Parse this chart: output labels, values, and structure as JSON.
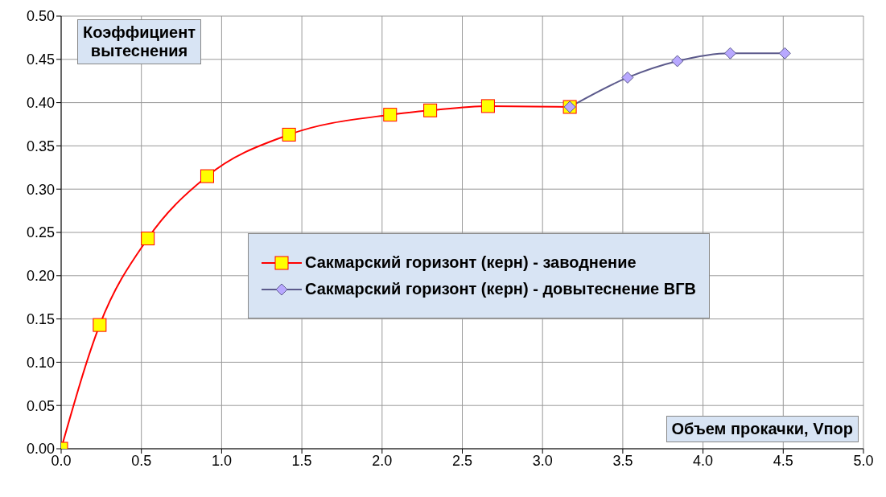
{
  "chart_data": {
    "type": "line",
    "xlabel": "Объем прокачки, Vпор",
    "ylabel": "Коэффициент вытеснения",
    "xlim": [
      0,
      5
    ],
    "ylim": [
      0,
      0.5
    ],
    "xticks": [
      {
        "value": 0,
        "label": "0.0"
      },
      {
        "value": 0.5,
        "label": "0.5"
      },
      {
        "value": 1,
        "label": "1.0"
      },
      {
        "value": 1.5,
        "label": "1.5"
      },
      {
        "value": 2,
        "label": "2.0"
      },
      {
        "value": 2.5,
        "label": "2.5"
      },
      {
        "value": 3,
        "label": "3.0"
      },
      {
        "value": 3.5,
        "label": "3.5"
      },
      {
        "value": 4,
        "label": "4.0"
      },
      {
        "value": 4.5,
        "label": "4.5"
      },
      {
        "value": 5,
        "label": "5.0"
      }
    ],
    "yticks": [
      {
        "value": 0,
        "label": "0.00"
      },
      {
        "value": 0.05,
        "label": "0.05"
      },
      {
        "value": 0.1,
        "label": "0.10"
      },
      {
        "value": 0.15,
        "label": "0.15"
      },
      {
        "value": 0.2,
        "label": "0.20"
      },
      {
        "value": 0.25,
        "label": "0.25"
      },
      {
        "value": 0.3,
        "label": "0.30"
      },
      {
        "value": 0.35,
        "label": "0.35"
      },
      {
        "value": 0.4,
        "label": "0.40"
      },
      {
        "value": 0.45,
        "label": "0.45"
      },
      {
        "value": 0.5,
        "label": "0.50"
      }
    ],
    "grid": true,
    "legend": "right",
    "line_style": "solid",
    "series": [
      {
        "name": "Сакмарский горизонт (керн) - заводнение",
        "color": "#ff0000",
        "marker": "square",
        "x": [
          0,
          0.24,
          0.54,
          0.91,
          1.42,
          2.05,
          2.3,
          2.66,
          3.17
        ],
        "values": [
          0,
          0.143,
          0.243,
          0.315,
          0.363,
          0.386,
          0.391,
          0.396,
          0.395
        ]
      },
      {
        "name": "Сакмарский горизонт (керн) - довытеснение ВГВ",
        "color": "#5c5a8c",
        "marker": "diamond",
        "x": [
          3.17,
          3.53,
          3.84,
          4.17,
          4.51
        ],
        "values": [
          0.395,
          0.429,
          0.448,
          0.457,
          0.457
        ]
      }
    ]
  }
}
